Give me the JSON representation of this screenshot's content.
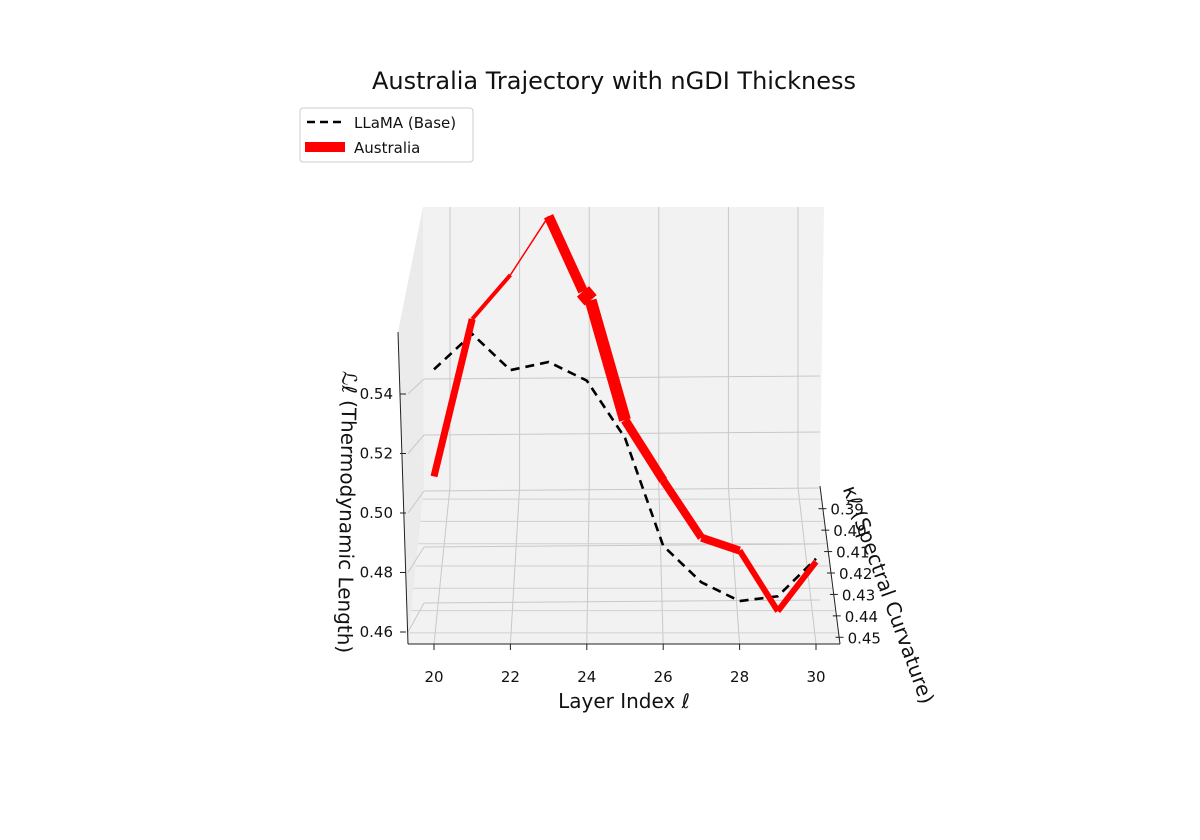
{
  "chart_data": {
    "type": "line",
    "projection": "3d",
    "title": "Australia Trajectory with nGDI Thickness",
    "xlabel": "Layer Index ℓ",
    "ylabel": "κℓ (Spectral Curvature)",
    "zlabel": "ℒℓ (Thermodynamic Length)",
    "xlim": [
      19.5,
      30.5
    ],
    "ylim": [
      0.385,
      0.455
    ],
    "zlim": [
      0.455,
      0.56
    ],
    "x_ticks": [
      "20",
      "22",
      "24",
      "26",
      "28",
      "30"
    ],
    "y_ticks": [
      "0.39",
      "0.40",
      "0.41",
      "0.42",
      "0.43",
      "0.44",
      "0.45"
    ],
    "z_ticks": [
      "0.46",
      "0.48",
      "0.50",
      "0.52",
      "0.54"
    ],
    "grid": true,
    "legend_position": "top-left",
    "series": [
      {
        "name": "LLaMA (Base)",
        "color": "#000000",
        "style": "dashed",
        "x": [
          20,
          21,
          22,
          23,
          24,
          25,
          26,
          27,
          28,
          29,
          30
        ],
        "y": [
          0.44,
          0.432,
          0.425,
          0.42,
          0.415,
          0.41,
          0.405,
          0.4,
          0.396,
          0.393,
          0.39
        ],
        "z": [
          0.548,
          0.56,
          0.548,
          0.551,
          0.545,
          0.526,
          0.49,
          0.478,
          0.472,
          0.474,
          0.487
        ]
      },
      {
        "name": "Australia",
        "color": "#ff0000",
        "style": "solid",
        "x": [
          20,
          21,
          22,
          23,
          23.9,
          24.1,
          25,
          26,
          27,
          28,
          29,
          30
        ],
        "y": [
          0.44,
          0.432,
          0.425,
          0.42,
          0.416,
          0.414,
          0.41,
          0.405,
          0.4,
          0.396,
          0.393,
          0.39
        ],
        "z": [
          0.512,
          0.565,
          0.58,
          0.6,
          0.575,
          0.572,
          0.532,
          0.512,
          0.493,
          0.489,
          0.469,
          0.486
        ],
        "thickness": [
          7,
          4,
          1.5,
          10,
          16,
          12,
          9,
          8,
          8,
          6,
          6
        ]
      }
    ]
  }
}
